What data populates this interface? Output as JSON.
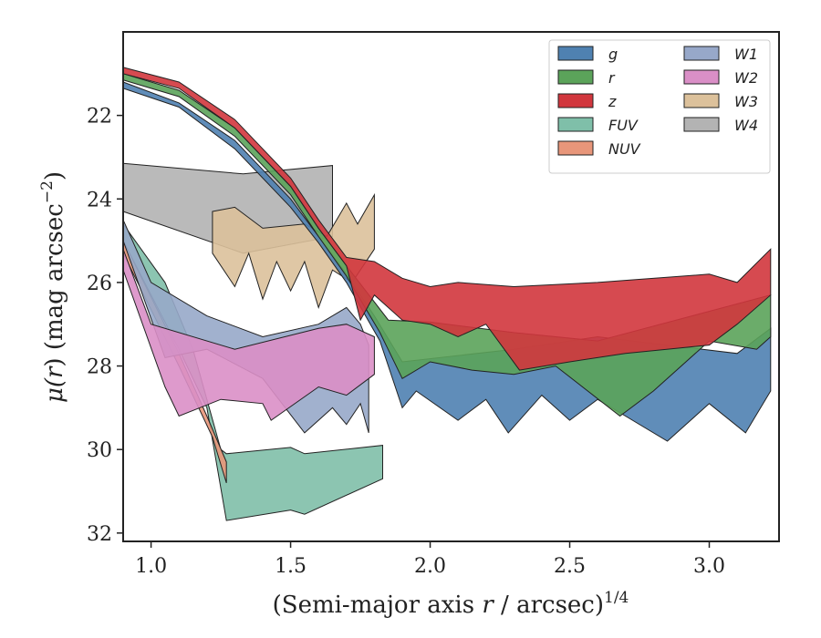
{
  "chart_data": {
    "type": "area",
    "title": "",
    "xlabel_main": "(Semi-major axis ",
    "xlabel_var": "r",
    "xlabel_mid": " / arcsec)",
    "xlabel_sup": "1/4",
    "ylabel_main": "μ(",
    "ylabel_var": "r",
    "ylabel_mid": ") (mag arcsec",
    "ylabel_sup": "−2",
    "ylabel_end": ")",
    "xlim": [
      0.9,
      3.25
    ],
    "ylim": [
      32.2,
      20.0
    ],
    "y_inverted": true,
    "xticks": [
      1.0,
      1.5,
      2.0,
      2.5,
      3.0
    ],
    "xtick_labels": [
      "1.0",
      "1.5",
      "2.0",
      "2.5",
      "3.0"
    ],
    "yticks": [
      22,
      24,
      26,
      28,
      30,
      32
    ],
    "ytick_labels": [
      "22",
      "24",
      "26",
      "28",
      "30",
      "32"
    ],
    "grid": false,
    "legend_position": "top-right",
    "legend_columns": 2,
    "series": [
      {
        "name": "W4",
        "color": "#b3b3b3",
        "upper": [
          [
            0.9,
            23.15
          ],
          [
            1.33,
            23.4
          ],
          [
            1.65,
            23.2
          ]
        ],
        "lower": [
          [
            0.9,
            24.3
          ],
          [
            1.33,
            25.3
          ],
          [
            1.65,
            24.9
          ]
        ]
      },
      {
        "name": "W3",
        "color": "#dcc19b",
        "upper": [
          [
            1.22,
            24.3
          ],
          [
            1.3,
            24.2
          ],
          [
            1.4,
            24.7
          ],
          [
            1.55,
            24.6
          ],
          [
            1.63,
            24.9
          ],
          [
            1.7,
            24.1
          ],
          [
            1.74,
            24.6
          ],
          [
            1.8,
            23.9
          ]
        ],
        "lower": [
          [
            1.22,
            25.3
          ],
          [
            1.3,
            26.1
          ],
          [
            1.35,
            25.3
          ],
          [
            1.4,
            26.4
          ],
          [
            1.45,
            25.5
          ],
          [
            1.5,
            26.2
          ],
          [
            1.55,
            25.5
          ],
          [
            1.6,
            26.6
          ],
          [
            1.65,
            25.7
          ],
          [
            1.72,
            26.0
          ],
          [
            1.8,
            25.2
          ]
        ]
      },
      {
        "name": "FUV",
        "color": "#7fbfa9",
        "upper": [
          [
            0.9,
            24.6
          ],
          [
            1.05,
            26.0
          ],
          [
            1.15,
            27.6
          ],
          [
            1.25,
            30.0
          ],
          [
            1.27,
            30.1
          ],
          [
            1.5,
            29.95
          ],
          [
            1.55,
            30.1
          ],
          [
            1.83,
            29.9
          ]
        ],
        "lower": [
          [
            0.9,
            25.0
          ],
          [
            1.1,
            27.6
          ],
          [
            1.2,
            29.0
          ],
          [
            1.27,
            31.7
          ],
          [
            1.5,
            31.45
          ],
          [
            1.55,
            31.55
          ],
          [
            1.83,
            30.7
          ]
        ]
      },
      {
        "name": "NUV",
        "color": "#e8967a",
        "upper": [
          [
            0.9,
            25.0
          ],
          [
            1.1,
            27.7
          ],
          [
            1.2,
            29.2
          ],
          [
            1.27,
            30.3
          ]
        ],
        "lower": [
          [
            0.9,
            25.3
          ],
          [
            1.1,
            28.0
          ],
          [
            1.22,
            29.7
          ],
          [
            1.27,
            30.8
          ]
        ]
      },
      {
        "name": "g",
        "color": "#4f81b1",
        "upper": [
          [
            0.9,
            21.2
          ],
          [
            1.1,
            21.7
          ],
          [
            1.3,
            22.6
          ],
          [
            1.5,
            24.0
          ],
          [
            1.6,
            24.9
          ],
          [
            1.7,
            25.8
          ],
          [
            1.8,
            26.8
          ],
          [
            1.9,
            27.9
          ],
          [
            2.3,
            27.6
          ],
          [
            2.6,
            27.3
          ],
          [
            3.1,
            27.7
          ],
          [
            3.22,
            27.1
          ]
        ],
        "lower": [
          [
            0.9,
            21.35
          ],
          [
            1.1,
            21.8
          ],
          [
            1.3,
            22.8
          ],
          [
            1.5,
            24.2
          ],
          [
            1.6,
            25.05
          ],
          [
            1.7,
            26.0
          ],
          [
            1.82,
            27.4
          ],
          [
            1.9,
            29.0
          ],
          [
            1.95,
            28.6
          ],
          [
            2.1,
            29.3
          ],
          [
            2.2,
            28.8
          ],
          [
            2.28,
            29.6
          ],
          [
            2.4,
            28.7
          ],
          [
            2.5,
            29.3
          ],
          [
            2.6,
            28.8
          ],
          [
            2.7,
            29.2
          ],
          [
            2.85,
            29.8
          ],
          [
            3.0,
            28.9
          ],
          [
            3.13,
            29.6
          ],
          [
            3.22,
            28.6
          ]
        ]
      },
      {
        "name": "r",
        "color": "#5ba35a",
        "upper": [
          [
            0.9,
            21.0
          ],
          [
            1.1,
            21.4
          ],
          [
            1.3,
            22.3
          ],
          [
            1.5,
            23.7
          ],
          [
            1.6,
            24.7
          ],
          [
            1.7,
            25.6
          ],
          [
            1.85,
            26.9
          ],
          [
            2.0,
            26.95
          ],
          [
            2.3,
            27.2
          ],
          [
            2.6,
            27.4
          ],
          [
            3.22,
            26.3
          ]
        ],
        "lower": [
          [
            0.9,
            21.15
          ],
          [
            1.1,
            21.55
          ],
          [
            1.3,
            22.5
          ],
          [
            1.5,
            23.9
          ],
          [
            1.6,
            24.9
          ],
          [
            1.7,
            25.85
          ],
          [
            1.82,
            27.2
          ],
          [
            1.9,
            28.3
          ],
          [
            2.0,
            27.9
          ],
          [
            2.15,
            28.1
          ],
          [
            2.3,
            28.2
          ],
          [
            2.45,
            28.0
          ],
          [
            2.68,
            29.2
          ],
          [
            2.8,
            28.6
          ],
          [
            3.0,
            27.4
          ],
          [
            3.17,
            27.6
          ],
          [
            3.22,
            27.3
          ]
        ]
      },
      {
        "name": "z",
        "color": "#d1363d",
        "upper": [
          [
            0.9,
            20.85
          ],
          [
            1.1,
            21.2
          ],
          [
            1.3,
            22.1
          ],
          [
            1.5,
            23.5
          ],
          [
            1.6,
            24.5
          ],
          [
            1.7,
            25.4
          ],
          [
            1.8,
            25.5
          ],
          [
            1.9,
            25.9
          ],
          [
            2.0,
            26.1
          ],
          [
            2.1,
            26.0
          ],
          [
            2.3,
            26.1
          ],
          [
            2.6,
            26.0
          ],
          [
            3.0,
            25.8
          ],
          [
            3.1,
            26.0
          ],
          [
            3.22,
            25.2
          ]
        ],
        "lower": [
          [
            0.9,
            21.0
          ],
          [
            1.1,
            21.35
          ],
          [
            1.3,
            22.3
          ],
          [
            1.5,
            23.7
          ],
          [
            1.6,
            24.7
          ],
          [
            1.7,
            25.6
          ],
          [
            1.75,
            26.9
          ],
          [
            1.8,
            26.3
          ],
          [
            1.9,
            26.9
          ],
          [
            2.0,
            27.0
          ],
          [
            2.1,
            27.3
          ],
          [
            2.2,
            27.0
          ],
          [
            2.32,
            28.1
          ],
          [
            2.5,
            27.9
          ],
          [
            2.7,
            27.7
          ],
          [
            3.0,
            27.5
          ],
          [
            3.1,
            27.0
          ],
          [
            3.22,
            26.3
          ]
        ]
      },
      {
        "name": "W1",
        "color": "#97a8c9",
        "upper": [
          [
            0.9,
            24.5
          ],
          [
            1.0,
            26.0
          ],
          [
            1.2,
            26.8
          ],
          [
            1.4,
            27.3
          ],
          [
            1.6,
            27.0
          ],
          [
            1.7,
            26.6
          ],
          [
            1.75,
            27.0
          ],
          [
            1.78,
            27.5
          ]
        ],
        "lower": [
          [
            0.9,
            25.0
          ],
          [
            1.05,
            27.8
          ],
          [
            1.2,
            27.6
          ],
          [
            1.4,
            28.3
          ],
          [
            1.55,
            29.6
          ],
          [
            1.65,
            29.0
          ],
          [
            1.7,
            29.4
          ],
          [
            1.75,
            28.9
          ],
          [
            1.78,
            29.6
          ]
        ]
      },
      {
        "name": "W2",
        "color": "#da8fc7",
        "upper": [
          [
            0.9,
            25.2
          ],
          [
            1.0,
            27.0
          ],
          [
            1.3,
            27.6
          ],
          [
            1.6,
            27.1
          ],
          [
            1.7,
            27.0
          ],
          [
            1.8,
            27.3
          ]
        ],
        "lower": [
          [
            0.9,
            25.7
          ],
          [
            1.05,
            28.5
          ],
          [
            1.1,
            29.2
          ],
          [
            1.25,
            28.8
          ],
          [
            1.4,
            28.9
          ],
          [
            1.43,
            29.3
          ],
          [
            1.6,
            28.5
          ],
          [
            1.7,
            28.7
          ],
          [
            1.8,
            28.2
          ]
        ]
      }
    ],
    "legend": [
      {
        "name": "g",
        "color": "#4f81b1",
        "col": 0,
        "row": 0
      },
      {
        "name": "r",
        "color": "#5ba35a",
        "col": 0,
        "row": 1
      },
      {
        "name": "z",
        "color": "#d1363d",
        "col": 0,
        "row": 2
      },
      {
        "name": "FUV",
        "color": "#7fbfa9",
        "col": 0,
        "row": 3
      },
      {
        "name": "NUV",
        "color": "#e8967a",
        "col": 0,
        "row": 4
      },
      {
        "name": "W1",
        "color": "#97a8c9",
        "col": 1,
        "row": 0
      },
      {
        "name": "W2",
        "color": "#da8fc7",
        "col": 1,
        "row": 1
      },
      {
        "name": "W3",
        "color": "#dcc19b",
        "col": 1,
        "row": 2
      },
      {
        "name": "W4",
        "color": "#b3b3b3",
        "col": 1,
        "row": 3
      }
    ]
  }
}
